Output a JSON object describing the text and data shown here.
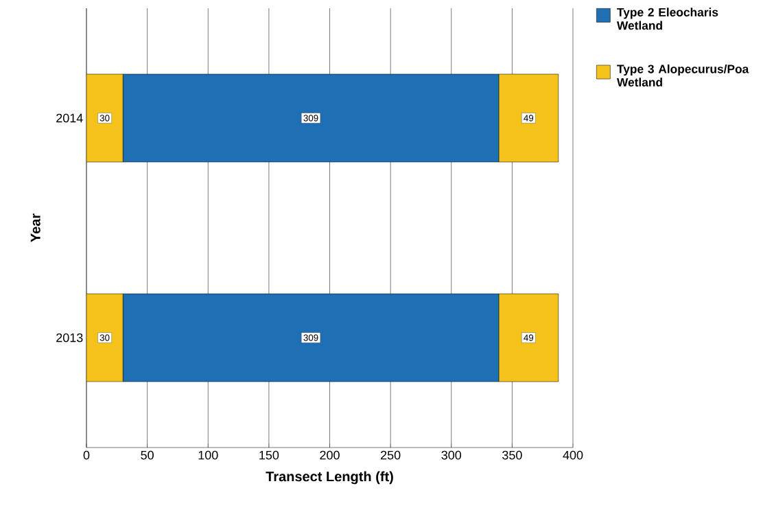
{
  "chart_data": {
    "type": "bar",
    "orientation": "horizontal",
    "stacked": true,
    "xlabel": "Transect Length (ft)",
    "ylabel": "Year",
    "categories": [
      "2014",
      "2013"
    ],
    "series": [
      {
        "name": "Type 3 Alopecurus/Poa Wetland",
        "color": "#f5c21b",
        "values": [
          30,
          30
        ]
      },
      {
        "name": "Type 2 Eleocharis Wetland",
        "color": "#1f6fb5",
        "values": [
          309,
          309
        ]
      },
      {
        "color": "#f5c21b",
        "values": [
          49,
          49
        ]
      }
    ],
    "xlim": [
      0,
      400
    ],
    "xticks": [
      0,
      50,
      100,
      150,
      200,
      250,
      300,
      350,
      400
    ],
    "grid": "x",
    "legend": "top right",
    "data_labels": true
  }
}
